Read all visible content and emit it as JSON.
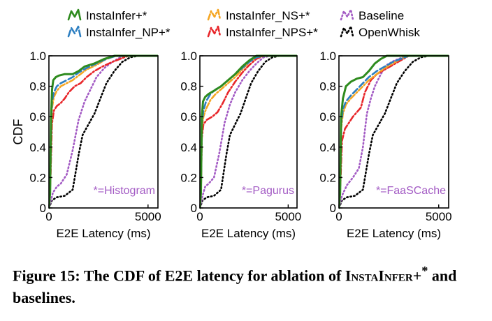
{
  "legend": [
    {
      "name": "InstaInfer+*",
      "color": "#2e8b1e",
      "dash": "solid"
    },
    {
      "name": "InstaInfer_NS+*",
      "color": "#f5a623",
      "dash": "dashdot"
    },
    {
      "name": "Baseline",
      "color": "#a35bc4",
      "dash": "dot"
    },
    {
      "name": "InstaInfer_NP+*",
      "color": "#2d7fc1",
      "dash": "dash"
    },
    {
      "name": "InstaInfer_NPS+*",
      "color": "#e8262a",
      "dash": "dashdot"
    },
    {
      "name": "OpenWhisk",
      "color": "#000000",
      "dash": "dot"
    }
  ],
  "caption": {
    "prefix": "Figure 15: The CDF of E2E latency for ablation of ",
    "name_sc": "InstaInfer",
    "name_suffix": "+",
    "star": "*",
    "suffix": " and baselines."
  },
  "chart_data": [
    {
      "type": "line",
      "annotation": "*=Histogram",
      "xlabel": "E2E Latency (ms)",
      "ylabel": "CDF",
      "xlim": [
        0,
        5500
      ],
      "ylim": [
        0,
        1.0
      ],
      "xticks": [
        "0",
        "5000"
      ],
      "yticks": [
        "0",
        "0.2",
        "0.4",
        "0.6",
        "0.8",
        "1.0"
      ],
      "series": [
        {
          "name": "InstaInfer+*",
          "x": [
            0,
            60,
            110,
            160,
            220,
            350,
            500,
            800,
            1200,
            1500,
            1800,
            2300,
            2800,
            3300,
            3700,
            5500
          ],
          "y": [
            0,
            0.1,
            0.6,
            0.78,
            0.84,
            0.86,
            0.87,
            0.88,
            0.88,
            0.9,
            0.93,
            0.95,
            0.98,
            1.0,
            1.0,
            1.0
          ]
        },
        {
          "name": "InstaInfer_NS+*",
          "x": [
            0,
            60,
            110,
            160,
            250,
            400,
            600,
            900,
            1200,
            1500,
            1900,
            2400,
            2900,
            3400,
            3800,
            5500
          ],
          "y": [
            0,
            0.1,
            0.5,
            0.66,
            0.73,
            0.77,
            0.8,
            0.82,
            0.84,
            0.87,
            0.91,
            0.94,
            0.98,
            1.0,
            1.0,
            1.0
          ]
        },
        {
          "name": "InstaInfer_NP+*",
          "x": [
            0,
            60,
            110,
            160,
            250,
            400,
            600,
            900,
            1200,
            1500,
            1900,
            2400,
            2900,
            3400,
            3800,
            5500
          ],
          "y": [
            0,
            0.1,
            0.55,
            0.7,
            0.76,
            0.8,
            0.82,
            0.84,
            0.86,
            0.89,
            0.92,
            0.95,
            0.98,
            1.0,
            1.0,
            1.0
          ]
        },
        {
          "name": "InstaInfer_NPS+*",
          "x": [
            0,
            80,
            150,
            250,
            400,
            600,
            800,
            1000,
            1300,
            1600,
            1900,
            2300,
            2700,
            3200,
            3600,
            4000,
            5500
          ],
          "y": [
            0,
            0.2,
            0.55,
            0.64,
            0.67,
            0.69,
            0.72,
            0.76,
            0.8,
            0.82,
            0.86,
            0.9,
            0.93,
            0.96,
            0.98,
            1.0,
            1.0
          ]
        },
        {
          "name": "Baseline",
          "x": [
            0,
            200,
            400,
            600,
            900,
            1200,
            1500,
            1800,
            2100,
            2400,
            2800,
            3200,
            3600,
            4000,
            5500
          ],
          "y": [
            0,
            0.1,
            0.14,
            0.16,
            0.22,
            0.38,
            0.58,
            0.7,
            0.78,
            0.86,
            0.92,
            0.96,
            0.99,
            1.0,
            1.0
          ]
        },
        {
          "name": "OpenWhisk",
          "x": [
            0,
            150,
            400,
            800,
            1200,
            1500,
            1700,
            2000,
            2300,
            2600,
            2900,
            3300,
            3700,
            4100,
            4500,
            5500
          ],
          "y": [
            0,
            0.05,
            0.07,
            0.08,
            0.12,
            0.35,
            0.48,
            0.55,
            0.62,
            0.72,
            0.82,
            0.9,
            0.96,
            0.99,
            1.0,
            1.0
          ]
        }
      ]
    },
    {
      "type": "line",
      "annotation": "*=Pagurus",
      "xlabel": "E2E Latency (ms)",
      "ylabel": "",
      "xlim": [
        0,
        5500
      ],
      "ylim": [
        0,
        1.0
      ],
      "xticks": [
        "0",
        "5000"
      ],
      "yticks": [
        "0",
        "0.2",
        "0.4",
        "0.6",
        "0.8",
        "1.0"
      ],
      "series": [
        {
          "name": "InstaInfer+*",
          "x": [
            0,
            60,
            110,
            180,
            300,
            500,
            800,
            1200,
            1600,
            2000,
            2400,
            2800,
            3200,
            3600,
            5500
          ],
          "y": [
            0,
            0.1,
            0.6,
            0.7,
            0.73,
            0.75,
            0.77,
            0.8,
            0.84,
            0.88,
            0.93,
            0.97,
            1.0,
            1.0,
            1.0
          ]
        },
        {
          "name": "InstaInfer_NS+*",
          "x": [
            0,
            60,
            110,
            200,
            350,
            600,
            900,
            1200,
            1600,
            2000,
            2400,
            2800,
            3200,
            3600,
            5500
          ],
          "y": [
            0,
            0.1,
            0.52,
            0.6,
            0.65,
            0.71,
            0.75,
            0.78,
            0.82,
            0.86,
            0.91,
            0.96,
            0.99,
            1.0,
            1.0
          ]
        },
        {
          "name": "InstaInfer_NP+*",
          "x": [
            0,
            60,
            110,
            200,
            350,
            600,
            900,
            1200,
            1600,
            2000,
            2400,
            2800,
            3200,
            3600,
            5500
          ],
          "y": [
            0,
            0.1,
            0.55,
            0.64,
            0.7,
            0.75,
            0.78,
            0.8,
            0.84,
            0.88,
            0.92,
            0.96,
            0.99,
            1.0,
            1.0
          ]
        },
        {
          "name": "InstaInfer_NPS+*",
          "x": [
            0,
            60,
            110,
            200,
            400,
            700,
            1000,
            1300,
            1600,
            2000,
            2400,
            2800,
            3200,
            3600,
            5500
          ],
          "y": [
            0,
            0.1,
            0.46,
            0.55,
            0.58,
            0.6,
            0.63,
            0.69,
            0.76,
            0.83,
            0.89,
            0.94,
            0.98,
            1.0,
            1.0
          ]
        },
        {
          "name": "Baseline",
          "x": [
            0,
            150,
            300,
            500,
            800,
            1100,
            1400,
            1700,
            2000,
            2400,
            2800,
            3200,
            3600,
            4000,
            5500
          ],
          "y": [
            0,
            0.08,
            0.14,
            0.16,
            0.2,
            0.36,
            0.56,
            0.68,
            0.76,
            0.84,
            0.9,
            0.95,
            0.99,
            1.0,
            1.0
          ]
        },
        {
          "name": "OpenWhisk",
          "x": [
            0,
            150,
            400,
            800,
            1200,
            1500,
            1700,
            2000,
            2300,
            2600,
            2900,
            3300,
            3700,
            4100,
            4500,
            5500
          ],
          "y": [
            0,
            0.05,
            0.07,
            0.08,
            0.12,
            0.35,
            0.48,
            0.55,
            0.62,
            0.72,
            0.82,
            0.9,
            0.96,
            0.99,
            1.0,
            1.0
          ]
        }
      ]
    },
    {
      "type": "line",
      "annotation": "*=FaaSCache",
      "xlabel": "E2E Latency (ms)",
      "ylabel": "",
      "xlim": [
        0,
        5500
      ],
      "ylim": [
        0,
        1.0
      ],
      "xticks": [
        "0",
        "5000"
      ],
      "yticks": [
        "0",
        "0.2",
        "0.4",
        "0.6",
        "0.8",
        "1.0"
      ],
      "series": [
        {
          "name": "InstaInfer+*",
          "x": [
            0,
            60,
            110,
            200,
            350,
            600,
            900,
            1200,
            1500,
            1800,
            2100,
            2400,
            2800,
            3200,
            5500
          ],
          "y": [
            0,
            0.1,
            0.6,
            0.72,
            0.8,
            0.83,
            0.85,
            0.86,
            0.9,
            0.95,
            0.98,
            1.0,
            1.0,
            1.0,
            1.0
          ]
        },
        {
          "name": "InstaInfer_NS+*",
          "x": [
            0,
            60,
            110,
            200,
            350,
            600,
            900,
            1200,
            1500,
            1900,
            2300,
            2700,
            3100,
            3500,
            5500
          ],
          "y": [
            0,
            0.1,
            0.52,
            0.62,
            0.68,
            0.72,
            0.76,
            0.8,
            0.84,
            0.88,
            0.92,
            0.95,
            0.98,
            1.0,
            1.0
          ]
        },
        {
          "name": "InstaInfer_NP+*",
          "x": [
            0,
            60,
            110,
            200,
            350,
            600,
            900,
            1200,
            1500,
            1900,
            2300,
            2700,
            3100,
            3500,
            5500
          ],
          "y": [
            0,
            0.1,
            0.55,
            0.65,
            0.7,
            0.74,
            0.78,
            0.82,
            0.86,
            0.9,
            0.93,
            0.96,
            0.98,
            1.0,
            1.0
          ]
        },
        {
          "name": "InstaInfer_NPS+*",
          "x": [
            0,
            80,
            150,
            300,
            500,
            700,
            900,
            1100,
            1300,
            1600,
            1900,
            2300,
            2700,
            3100,
            3500,
            5500
          ],
          "y": [
            0,
            0.18,
            0.44,
            0.52,
            0.56,
            0.6,
            0.63,
            0.66,
            0.76,
            0.84,
            0.88,
            0.91,
            0.94,
            0.97,
            1.0,
            1.0
          ]
        },
        {
          "name": "Baseline",
          "x": [
            0,
            150,
            400,
            700,
            1000,
            1200,
            1400,
            1600,
            1800,
            2100,
            2400,
            2800,
            3200,
            3600,
            5500
          ],
          "y": [
            0,
            0.08,
            0.15,
            0.2,
            0.26,
            0.4,
            0.62,
            0.72,
            0.8,
            0.88,
            0.94,
            0.97,
            0.99,
            1.0,
            1.0
          ]
        },
        {
          "name": "OpenWhisk",
          "x": [
            0,
            150,
            400,
            800,
            1200,
            1500,
            1700,
            2000,
            2300,
            2600,
            2900,
            3300,
            3700,
            4100,
            4500,
            5500
          ],
          "y": [
            0,
            0.05,
            0.07,
            0.08,
            0.12,
            0.35,
            0.48,
            0.55,
            0.62,
            0.72,
            0.82,
            0.9,
            0.96,
            0.99,
            1.0,
            1.0
          ]
        }
      ]
    }
  ]
}
